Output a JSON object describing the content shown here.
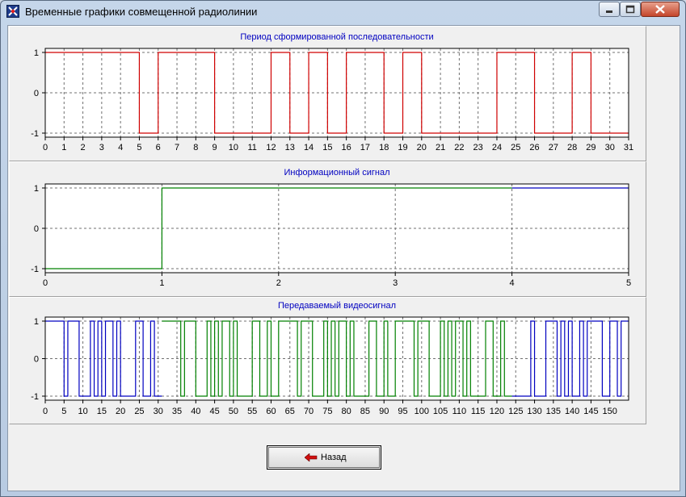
{
  "window": {
    "title": "Временные графики совмещенной радиолинии"
  },
  "buttons": {
    "back_label": "Назад"
  },
  "icons": {
    "app": "app-icon",
    "minimize": "minimize-icon",
    "maximize": "maximize-icon",
    "close": "close-icon",
    "back": "arrow-left-icon"
  },
  "colors": {
    "red": "#d00000",
    "green": "#008000",
    "blue": "#0000c0",
    "title_text": "#0000c0"
  },
  "chart_data": [
    {
      "type": "line",
      "title": "Период сформированной последовательности",
      "step": true,
      "xlim": [
        0,
        31
      ],
      "ylim": [
        -1,
        1
      ],
      "xticks": [
        0,
        1,
        2,
        3,
        4,
        5,
        6,
        7,
        8,
        9,
        10,
        11,
        12,
        13,
        14,
        15,
        16,
        17,
        18,
        19,
        20,
        21,
        22,
        23,
        24,
        25,
        26,
        27,
        28,
        29,
        30,
        31
      ],
      "yticks": [
        1,
        0,
        -1
      ],
      "series": [
        {
          "color": "#d00000",
          "values": [
            1,
            1,
            1,
            1,
            1,
            -1,
            1,
            1,
            1,
            -1,
            -1,
            -1,
            1,
            -1,
            1,
            -1,
            1,
            1,
            -1,
            1,
            -1,
            -1,
            -1,
            -1,
            1,
            1,
            -1,
            -1,
            1,
            -1,
            -1
          ]
        }
      ],
      "grid": true
    },
    {
      "type": "line",
      "title": "Информационный сигнал",
      "step": true,
      "xlim": [
        0,
        5
      ],
      "ylim": [
        -1,
        1
      ],
      "xticks": [
        0,
        1,
        2,
        3,
        4,
        5
      ],
      "yticks": [
        1,
        0,
        -1
      ],
      "series": [
        {
          "color": "#008000",
          "values": [
            -1,
            1,
            1,
            1
          ]
        },
        {
          "color": "#0000c0",
          "values": [
            1
          ]
        }
      ],
      "grid": true
    },
    {
      "type": "line",
      "title": "Передаваемый видеосигнал",
      "step": true,
      "xlim": [
        0,
        155
      ],
      "ylim": [
        -1,
        1
      ],
      "xticks": [
        0,
        5,
        10,
        15,
        20,
        25,
        30,
        35,
        40,
        45,
        50,
        55,
        60,
        65,
        70,
        75,
        80,
        85,
        90,
        95,
        100,
        105,
        110,
        115,
        120,
        125,
        130,
        135,
        140,
        145,
        150
      ],
      "yticks": [
        1,
        0,
        -1
      ],
      "series": [
        {
          "color": "#0000c0",
          "start": 0,
          "values": [
            1,
            1,
            1,
            1,
            1,
            -1,
            1,
            1,
            1,
            -1,
            -1,
            -1,
            1,
            -1,
            1,
            -1,
            1,
            1,
            -1,
            1,
            -1,
            -1,
            -1,
            -1,
            1,
            1,
            -1,
            -1,
            1,
            -1,
            -1
          ]
        },
        {
          "color": "#008000",
          "start": 31,
          "values": [
            1,
            1,
            1,
            1,
            1,
            -1,
            1,
            1,
            1,
            -1,
            -1,
            -1,
            1,
            -1,
            1,
            -1,
            1,
            1,
            -1,
            1,
            -1,
            -1,
            -1,
            -1,
            1,
            1,
            -1,
            -1,
            1,
            -1,
            -1,
            1,
            1,
            1,
            1,
            1,
            -1,
            1,
            1,
            1,
            -1,
            -1,
            -1,
            1,
            -1,
            1,
            -1,
            1,
            1,
            -1,
            1,
            -1,
            -1,
            -1,
            -1,
            1,
            1,
            -1,
            -1,
            1,
            -1,
            -1,
            1,
            1,
            1,
            1,
            1,
            -1,
            1,
            1,
            1,
            -1,
            -1,
            -1,
            1,
            -1,
            1,
            -1,
            1,
            1,
            -1,
            1,
            -1,
            -1,
            -1,
            -1,
            1,
            1,
            -1,
            -1,
            1,
            -1,
            -1
          ]
        },
        {
          "color": "#0000c0",
          "start": 124,
          "values": [
            -1,
            -1,
            -1,
            -1,
            -1,
            1,
            -1,
            -1,
            -1,
            1,
            1,
            1,
            -1,
            1,
            -1,
            1,
            -1,
            -1,
            1,
            -1,
            1,
            1,
            1,
            1,
            -1,
            -1,
            1,
            1,
            -1,
            1,
            1
          ]
        }
      ],
      "grid": true
    }
  ]
}
